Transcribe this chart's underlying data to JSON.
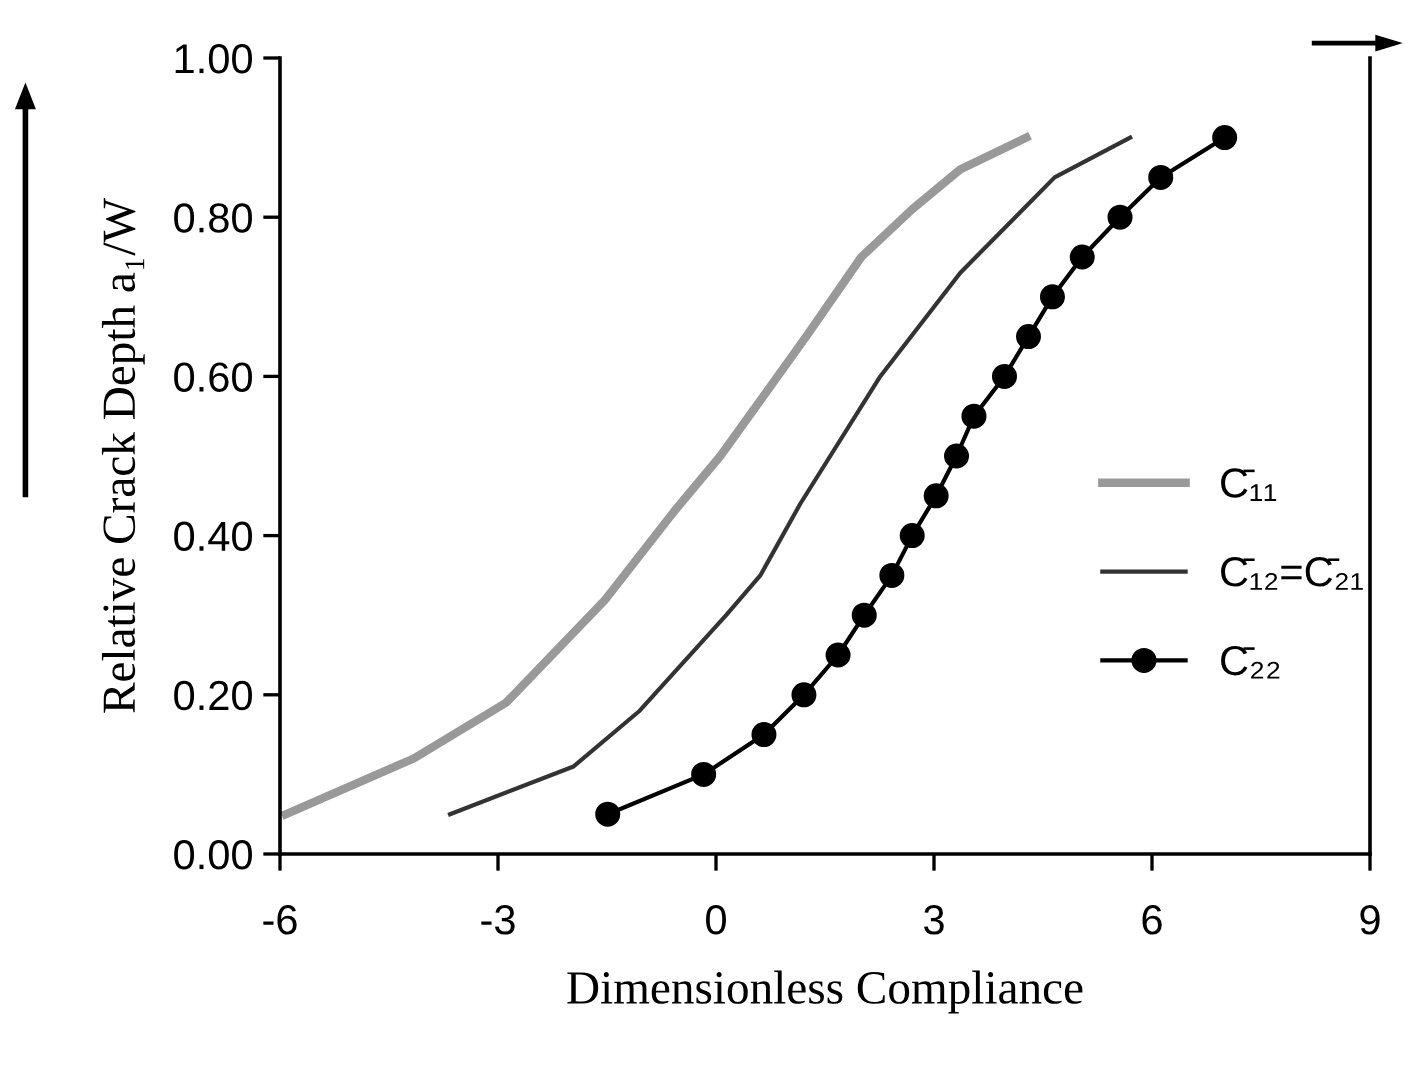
{
  "chart_data": {
    "type": "line",
    "xlabel": "Dimensionless Compliance",
    "ylabel": "Relative Crack Depth a₁/W",
    "series": [
      {
        "name": "C̄₁₁",
        "color": "#999999",
        "x": [
          -5.92,
          -4.16,
          -2.89,
          -1.52,
          -0.58,
          0.06,
          0.69,
          1.24,
          2.0,
          2.7,
          3.36,
          4.27
        ],
        "values": [
          0.05,
          0.12,
          0.19,
          0.32,
          0.43,
          0.5,
          0.58,
          0.65,
          0.75,
          0.81,
          0.86,
          0.9
        ]
      },
      {
        "name": "C̄₁₂=C̄₂₁",
        "color": "#333333",
        "x": [
          -3.66,
          -1.96,
          -1.05,
          0.14,
          0.61,
          1.16,
          2.26,
          3.36,
          4.66,
          5.7
        ],
        "values": [
          0.05,
          0.11,
          0.18,
          0.3,
          0.35,
          0.44,
          0.6,
          0.73,
          0.85,
          0.9
        ]
      },
      {
        "name": "C̄₂₂",
        "color": "#000000",
        "marker": "circle",
        "x": [
          -1.49,
          -0.17,
          0.66,
          1.21,
          1.68,
          2.04,
          2.42,
          2.7,
          3.03,
          3.31,
          3.55,
          3.97,
          4.3,
          4.63,
          5.04,
          5.56,
          6.12,
          7.0
        ],
        "values": [
          0.05,
          0.1,
          0.15,
          0.2,
          0.25,
          0.3,
          0.35,
          0.4,
          0.45,
          0.5,
          0.55,
          0.6,
          0.65,
          0.7,
          0.75,
          0.8,
          0.85,
          0.9
        ]
      }
    ],
    "xlim": [
      -6,
      9
    ],
    "xticks": [
      -6,
      -3,
      0,
      3,
      6,
      9
    ],
    "ylim": [
      0,
      1
    ],
    "yticks": [
      {
        "value": 0,
        "label": "0.00"
      },
      {
        "value": 0.2,
        "label": "0.20"
      },
      {
        "value": 0.4,
        "label": "0.40"
      },
      {
        "value": 0.6,
        "label": "0.60"
      },
      {
        "value": 0.8,
        "label": "0.80"
      },
      {
        "value": 1,
        "label": "1.00"
      }
    ],
    "grid": false,
    "legend": "right"
  }
}
